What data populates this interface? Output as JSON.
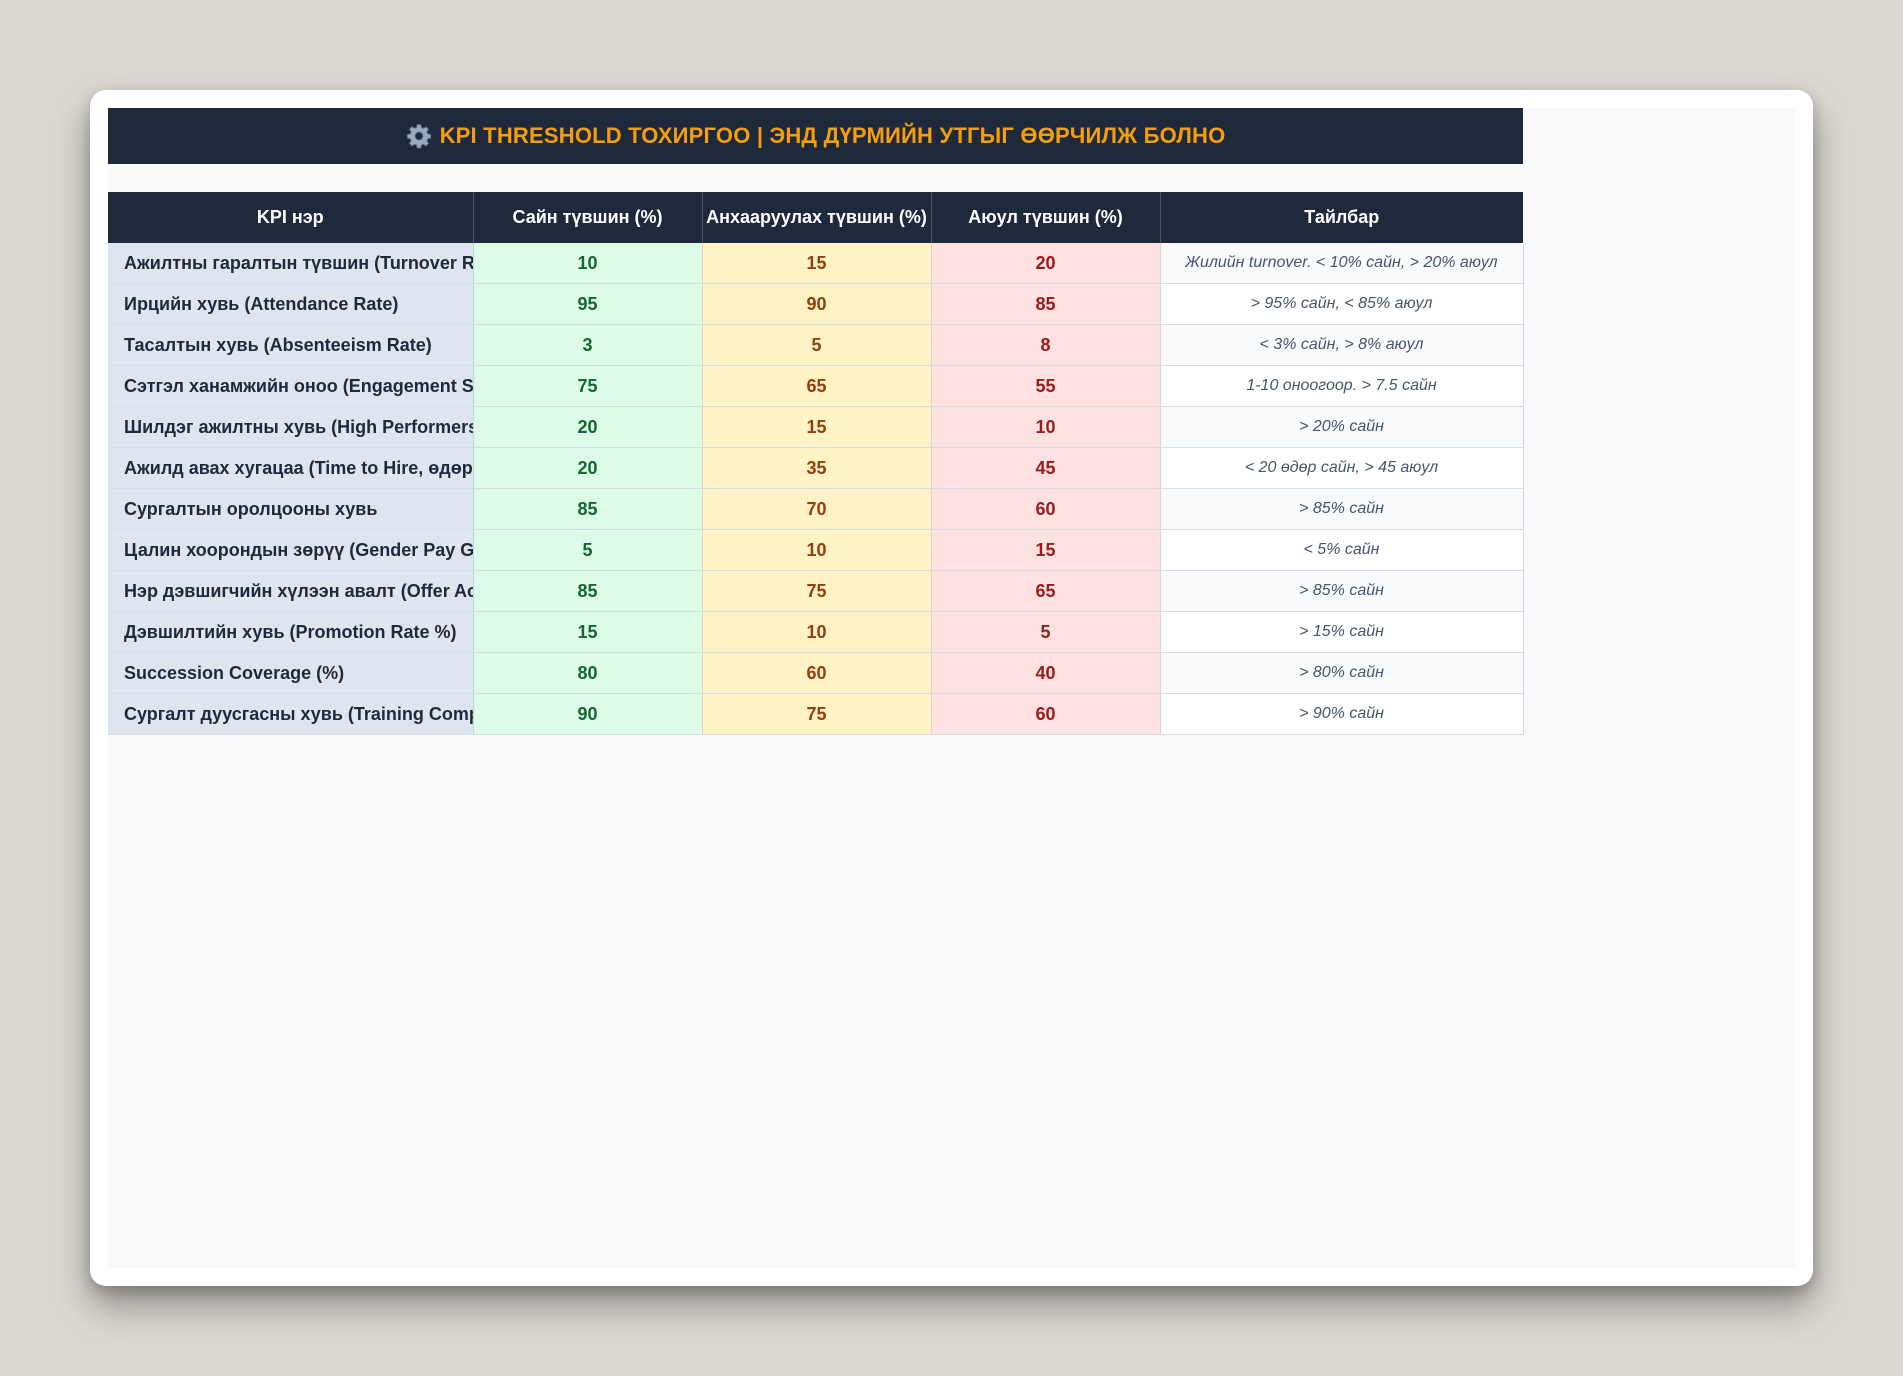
{
  "banner": {
    "icon": "gear-icon",
    "title": "KPI THRESHOLD ТОХИРГОО  |  ЭНД ДҮРМИЙН УТГЫГ ӨӨРЧИЛЖ БОЛНО"
  },
  "table": {
    "headers": [
      "KPI нэр",
      "Сайн түвшин (%)",
      "Анхааруулах түвшин (%)",
      "Аюул түвшин (%)",
      "Тайлбар"
    ],
    "rows": [
      {
        "name": "Ажилтны гаралтын түвшин (Turnover Rate)",
        "good": "10",
        "warn": "15",
        "bad": "20",
        "note": "Жилийн turnover. < 10% сайн, > 20% аюул"
      },
      {
        "name": "Ирцийн хувь (Attendance Rate)",
        "good": "95",
        "warn": "90",
        "bad": "85",
        "note": "> 95% сайн, < 85% аюул"
      },
      {
        "name": "Тасалтын хувь (Absenteeism Rate)",
        "good": "3",
        "warn": "5",
        "bad": "8",
        "note": "< 3% сайн, > 8% аюул"
      },
      {
        "name": "Сэтгэл ханамжийн оноо (Engagement Score)",
        "good": "75",
        "warn": "65",
        "bad": "55",
        "note": "1-10 оноогоор. > 7.5 сайн"
      },
      {
        "name": "Шилдэг ажилтны хувь (High Performers %)",
        "good": "20",
        "warn": "15",
        "bad": "10",
        "note": "> 20% сайн"
      },
      {
        "name": "Ажилд авах хугацаа (Time to Hire, өдөр)",
        "good": "20",
        "warn": "35",
        "bad": "45",
        "note": "< 20 өдөр сайн, > 45 аюул"
      },
      {
        "name": "Сургалтын оролцооны хувь",
        "good": "85",
        "warn": "70",
        "bad": "60",
        "note": "> 85% сайн"
      },
      {
        "name": "Цалин хоорондын зөрүү (Gender Pay Gap %)",
        "good": "5",
        "warn": "10",
        "bad": "15",
        "note": "< 5% сайн"
      },
      {
        "name": "Нэр дэвшигчийн хүлээн авалт (Offer Acceptance %)",
        "good": "85",
        "warn": "75",
        "bad": "65",
        "note": "> 85% сайн"
      },
      {
        "name": "Дэвшилтийн хувь (Promotion Rate %)",
        "good": "15",
        "warn": "10",
        "bad": "5",
        "note": "> 15% сайн"
      },
      {
        "name": "Succession Coverage (%)",
        "good": "80",
        "warn": "60",
        "bad": "40",
        "note": "> 80% сайн"
      },
      {
        "name": "Сургалт дуусгасны хувь (Training Completion %)",
        "good": "90",
        "warn": "75",
        "bad": "60",
        "note": "> 90% сайн"
      }
    ]
  }
}
